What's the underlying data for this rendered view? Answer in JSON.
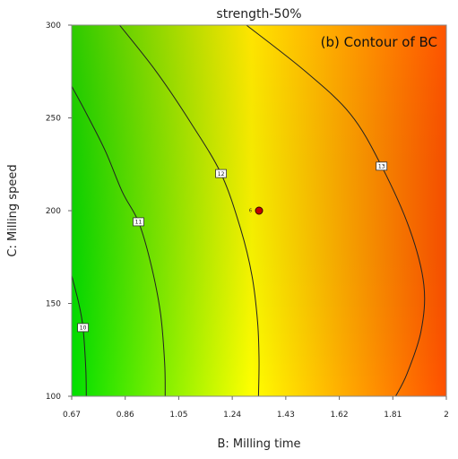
{
  "chart_data": {
    "type": "contour",
    "title": "strength-50%",
    "annotation": "(b) Contour of BC",
    "xlabel": "B: Milling time",
    "ylabel": "C: Milling speed",
    "xlim": [
      0.67,
      2
    ],
    "ylim": [
      100,
      300
    ],
    "x_ticks": [
      "0.67",
      "0.86",
      "1.05",
      "1.24",
      "1.43",
      "1.62",
      "1.81",
      "2"
    ],
    "y_ticks": [
      "100",
      "150",
      "200",
      "250",
      "300"
    ],
    "colorscale": [
      "#00e000",
      "#ffff00",
      "#ff5000"
    ],
    "contours": [
      {
        "level": "10",
        "points": [
          [
            0.67,
            165
          ],
          [
            0.695,
            150
          ],
          [
            0.71,
            137
          ],
          [
            0.72,
            115
          ],
          [
            0.722,
            100
          ]
        ],
        "label_at": [
          0.71,
          137
        ]
      },
      {
        "level": "11",
        "points": [
          [
            0.67,
            267
          ],
          [
            0.72,
            253
          ],
          [
            0.79,
            232
          ],
          [
            0.85,
            210
          ],
          [
            0.907,
            194
          ],
          [
            0.95,
            172
          ],
          [
            0.985,
            145
          ],
          [
            1.0,
            118
          ],
          [
            1.002,
            100
          ]
        ],
        "label_at": [
          0.907,
          194
        ]
      },
      {
        "level": "12",
        "points": [
          [
            0.84,
            300
          ],
          [
            0.97,
            275
          ],
          [
            1.09,
            248
          ],
          [
            1.2,
            220
          ],
          [
            1.27,
            190
          ],
          [
            1.31,
            165
          ],
          [
            1.33,
            140
          ],
          [
            1.335,
            120
          ],
          [
            1.333,
            100
          ]
        ],
        "label_at": [
          1.2,
          220
        ]
      },
      {
        "level": "13",
        "points": [
          [
            1.29,
            300
          ],
          [
            1.5,
            275
          ],
          [
            1.66,
            252
          ],
          [
            1.77,
            224
          ],
          [
            1.87,
            190
          ],
          [
            1.92,
            160
          ],
          [
            1.91,
            135
          ],
          [
            1.86,
            112
          ],
          [
            1.82,
            100
          ]
        ],
        "label_at": [
          1.77,
          224
        ]
      }
    ],
    "design_points": [
      {
        "x": 1.335,
        "y": 200,
        "label": "6"
      }
    ]
  }
}
